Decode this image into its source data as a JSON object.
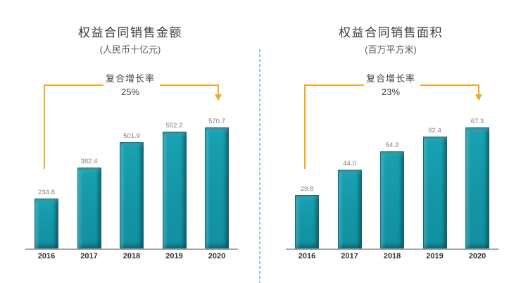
{
  "style": {
    "bar_color": "#1697A7",
    "bar_edge_color": "#0B6E7D",
    "accent_orange": "#F5A623",
    "axis_color": "#A6A6A6",
    "divider_color": "#8CCBDB",
    "value_label_color": "#7F7F7F",
    "title_color": "#3A3A3A"
  },
  "chart_data": [
    {
      "type": "bar",
      "title": "权益合同销售金额",
      "subtitle": "(人民币十亿元)",
      "cagr_label": "复合增长率",
      "cagr_value": "25%",
      "categories": [
        "2016",
        "2017",
        "2018",
        "2019",
        "2020"
      ],
      "values": [
        234.8,
        382.4,
        501.9,
        552.2,
        570.7
      ],
      "value_decimals": 1,
      "ylim": [
        0,
        600
      ],
      "grid": false,
      "legend": false,
      "xlabel": "",
      "ylabel": ""
    },
    {
      "type": "bar",
      "title": "权益合同销售面积",
      "subtitle": "(百万平方米)",
      "cagr_label": "复合增长率",
      "cagr_value": "23%",
      "categories": [
        "2016",
        "2017",
        "2018",
        "2019",
        "2020"
      ],
      "values": [
        29.8,
        44.0,
        54.2,
        62.4,
        67.3
      ],
      "value_decimals": 1,
      "ylim": [
        0,
        70
      ],
      "grid": false,
      "legend": false,
      "xlabel": "",
      "ylabel": ""
    }
  ]
}
